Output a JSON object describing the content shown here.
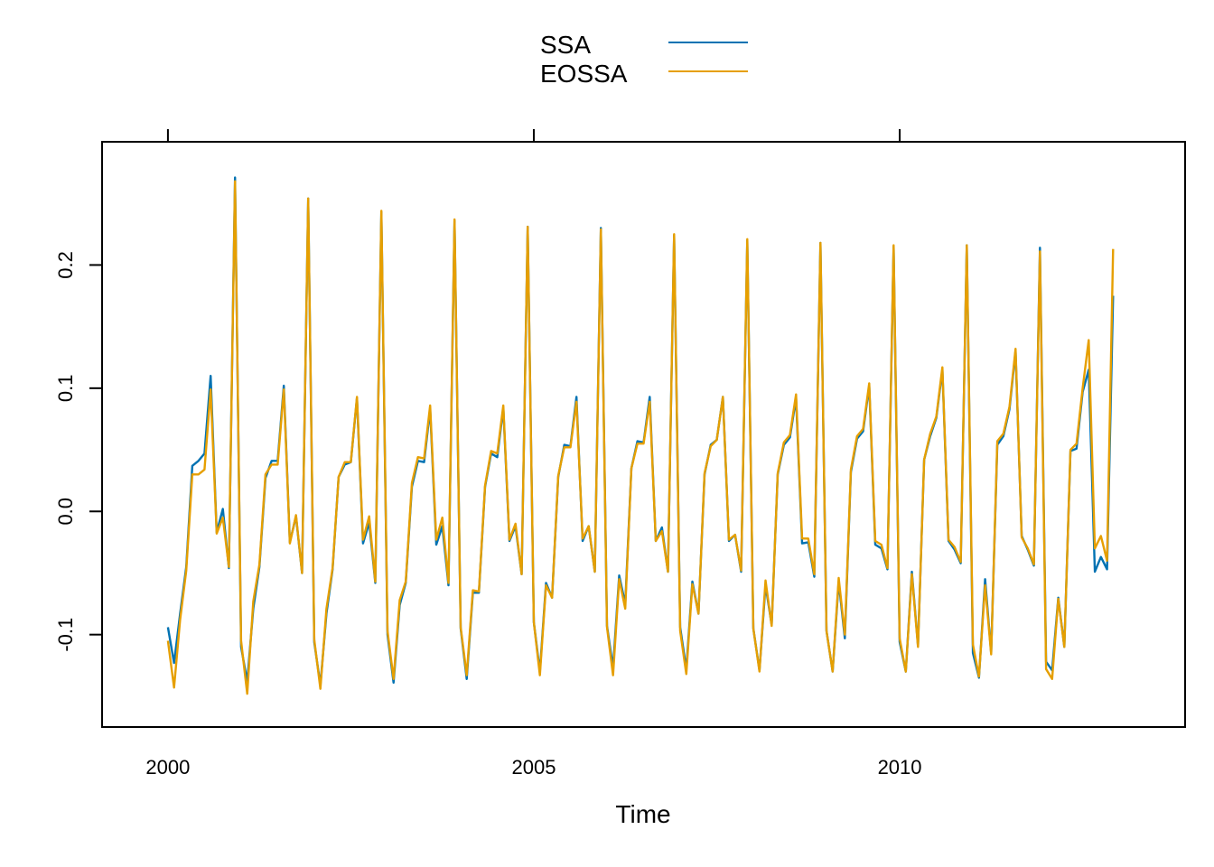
{
  "chart_data": {
    "type": "line",
    "title": "",
    "xlabel": "Time",
    "ylabel": "",
    "xlim": [
      1999.1,
      2013.9
    ],
    "ylim": [
      -0.175,
      0.3
    ],
    "x_ticks": [
      {
        "value": 2000,
        "label": "2000"
      },
      {
        "value": 2005,
        "label": "2005"
      },
      {
        "value": 2010,
        "label": "2010"
      }
    ],
    "y_ticks": [
      {
        "value": -0.1,
        "label": "-0.1"
      },
      {
        "value": 0.0,
        "label": "0.0"
      },
      {
        "value": 0.1,
        "label": "0.1"
      },
      {
        "value": 0.2,
        "label": "0.2"
      }
    ],
    "x_start": 2000,
    "x_step": 0.08333333,
    "legend": {
      "position": "top",
      "entries": [
        "SSA",
        "EOSSA"
      ]
    },
    "grid": false,
    "colors": {
      "SSA": "#0072b2",
      "EOSSA": "#e69f00",
      "axis": "#000000"
    },
    "series": [
      {
        "name": "SSA",
        "color": "#0072b2",
        "values": [
          -0.094,
          -0.123,
          -0.083,
          -0.045,
          0.037,
          0.041,
          0.047,
          0.11,
          -0.017,
          0.002,
          -0.046,
          0.271,
          -0.11,
          -0.138,
          -0.079,
          -0.045,
          0.027,
          0.041,
          0.041,
          0.102,
          -0.025,
          -0.004,
          -0.05,
          0.254,
          -0.106,
          -0.141,
          -0.083,
          -0.047,
          0.028,
          0.038,
          0.04,
          0.092,
          -0.026,
          -0.009,
          -0.058,
          0.243,
          -0.1,
          -0.139,
          -0.076,
          -0.058,
          0.02,
          0.041,
          0.04,
          0.083,
          -0.027,
          -0.012,
          -0.06,
          0.236,
          -0.095,
          -0.136,
          -0.066,
          -0.066,
          0.02,
          0.047,
          0.044,
          0.084,
          -0.024,
          -0.012,
          -0.051,
          0.231,
          -0.09,
          -0.13,
          -0.058,
          -0.07,
          0.028,
          0.054,
          0.053,
          0.093,
          -0.024,
          -0.012,
          -0.049,
          0.23,
          -0.093,
          -0.127,
          -0.052,
          -0.075,
          0.035,
          0.057,
          0.056,
          0.093,
          -0.024,
          -0.013,
          -0.049,
          0.224,
          -0.094,
          -0.128,
          -0.057,
          -0.083,
          0.03,
          0.054,
          0.058,
          0.093,
          -0.024,
          -0.019,
          -0.049,
          0.22,
          -0.095,
          -0.129,
          -0.06,
          -0.092,
          0.03,
          0.054,
          0.06,
          0.092,
          -0.026,
          -0.025,
          -0.053,
          0.218,
          -0.097,
          -0.13,
          -0.057,
          -0.103,
          0.032,
          0.059,
          0.065,
          0.102,
          -0.027,
          -0.03,
          -0.047,
          0.215,
          -0.106,
          -0.13,
          -0.049,
          -0.109,
          0.042,
          0.061,
          0.076,
          0.115,
          -0.024,
          -0.031,
          -0.042,
          0.216,
          -0.115,
          -0.135,
          -0.055,
          -0.115,
          0.054,
          0.061,
          0.083,
          0.13,
          -0.02,
          -0.031,
          -0.044,
          0.214,
          -0.122,
          -0.129,
          -0.07,
          -0.11,
          0.049,
          0.051,
          0.097,
          0.115,
          -0.049,
          -0.037,
          -0.047,
          0.175
        ]
      },
      {
        "name": "EOSSA",
        "color": "#e69f00",
        "values": [
          -0.105,
          -0.143,
          -0.088,
          -0.048,
          0.03,
          0.03,
          0.034,
          0.099,
          -0.018,
          -0.005,
          -0.045,
          0.268,
          -0.105,
          -0.148,
          -0.073,
          -0.043,
          0.03,
          0.038,
          0.038,
          0.099,
          -0.026,
          -0.003,
          -0.05,
          0.254,
          -0.104,
          -0.144,
          -0.079,
          -0.046,
          0.028,
          0.04,
          0.04,
          0.093,
          -0.023,
          -0.004,
          -0.057,
          0.244,
          -0.097,
          -0.136,
          -0.072,
          -0.057,
          0.023,
          0.044,
          0.043,
          0.086,
          -0.023,
          -0.005,
          -0.058,
          0.237,
          -0.094,
          -0.133,
          -0.064,
          -0.065,
          0.021,
          0.049,
          0.047,
          0.086,
          -0.023,
          -0.01,
          -0.051,
          0.231,
          -0.09,
          -0.133,
          -0.06,
          -0.07,
          0.029,
          0.052,
          0.052,
          0.089,
          -0.022,
          -0.012,
          -0.049,
          0.229,
          -0.094,
          -0.133,
          -0.055,
          -0.079,
          0.035,
          0.055,
          0.055,
          0.089,
          -0.024,
          -0.016,
          -0.049,
          0.225,
          -0.097,
          -0.132,
          -0.059,
          -0.083,
          0.031,
          0.053,
          0.058,
          0.093,
          -0.023,
          -0.019,
          -0.048,
          0.221,
          -0.095,
          -0.13,
          -0.056,
          -0.093,
          0.031,
          0.056,
          0.062,
          0.095,
          -0.022,
          -0.022,
          -0.051,
          0.218,
          -0.097,
          -0.13,
          -0.054,
          -0.1,
          0.034,
          0.061,
          0.067,
          0.104,
          -0.024,
          -0.027,
          -0.046,
          0.216,
          -0.103,
          -0.13,
          -0.051,
          -0.11,
          0.042,
          0.063,
          0.077,
          0.117,
          -0.023,
          -0.029,
          -0.041,
          0.216,
          -0.108,
          -0.134,
          -0.06,
          -0.116,
          0.057,
          0.063,
          0.085,
          0.132,
          -0.021,
          -0.03,
          -0.043,
          0.211,
          -0.128,
          -0.136,
          -0.071,
          -0.11,
          0.05,
          0.055,
          0.1,
          0.139,
          -0.03,
          -0.02,
          -0.04,
          0.213
        ]
      }
    ]
  }
}
